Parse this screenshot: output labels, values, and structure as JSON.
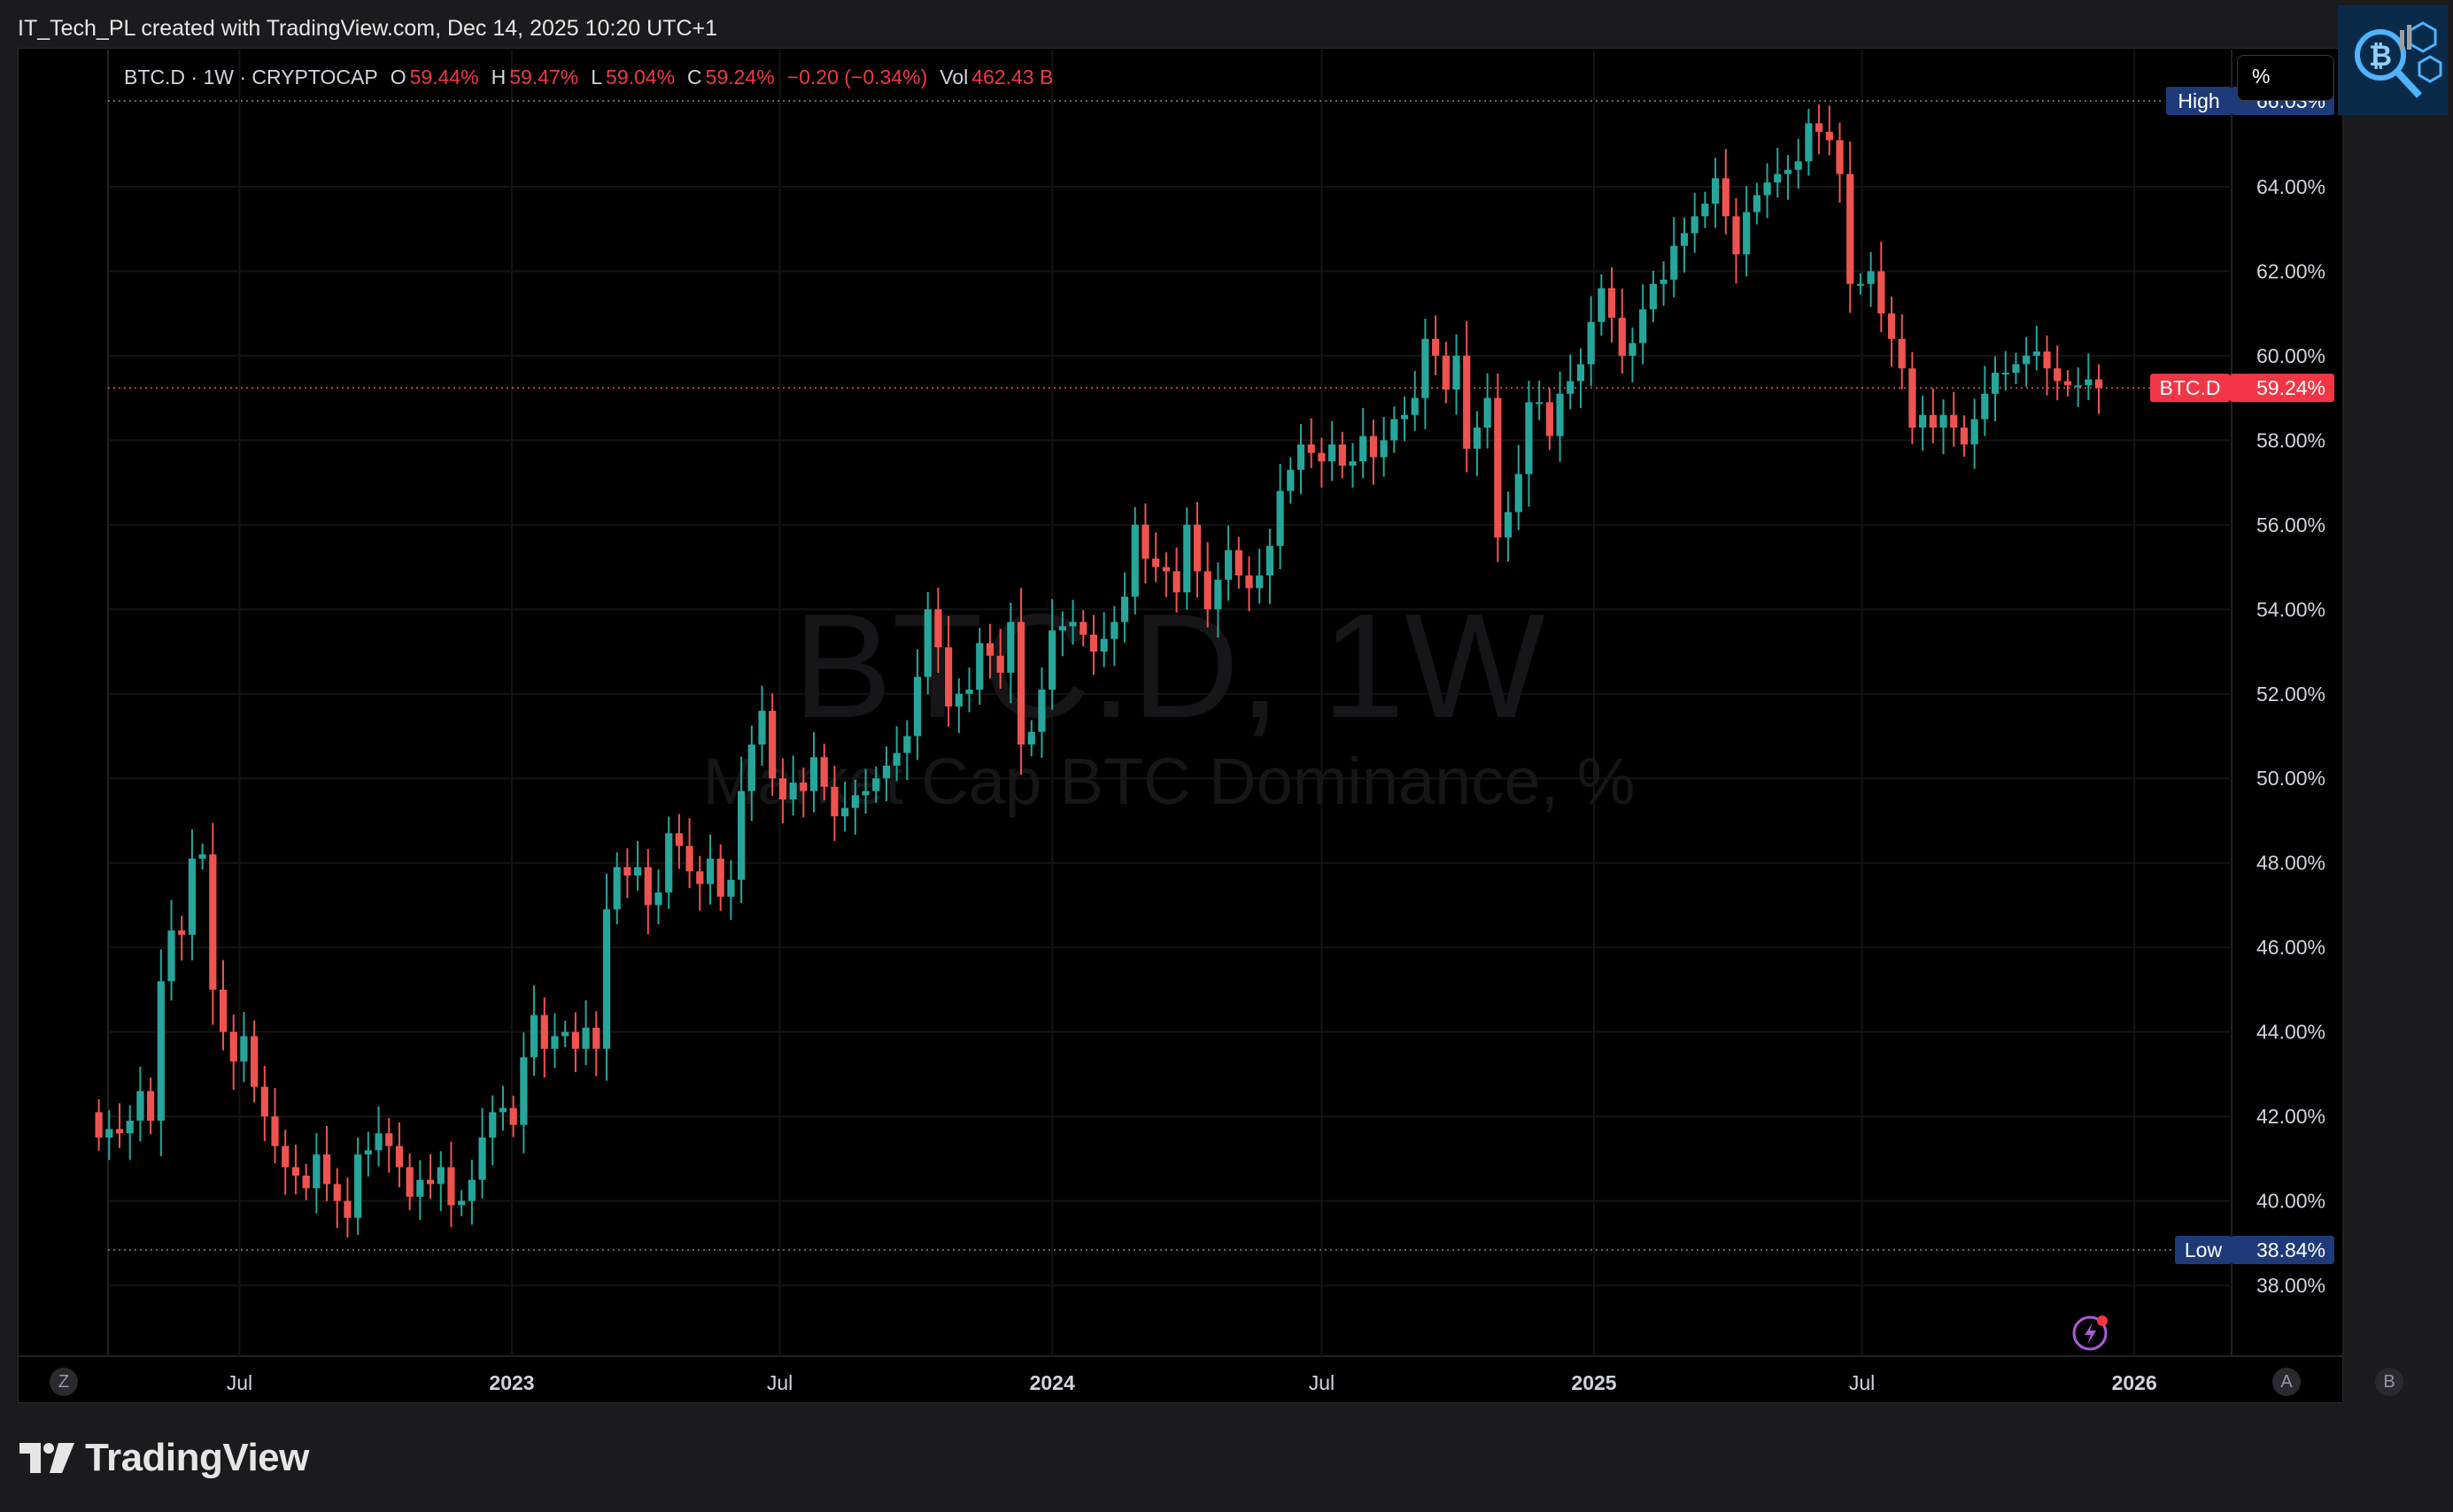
{
  "attribution": "IT_Tech_PL created with TradingView.com, Dec 14, 2025 10:20 UTC+1",
  "legend": {
    "symbol": "BTC.D · 1W · CRYPTOCAP",
    "open_label": "O",
    "open": "59.44%",
    "high_label": "H",
    "high": "59.47%",
    "low_label": "L",
    "low": "59.04%",
    "close_label": "C",
    "close": "59.24%",
    "change": "−0.20 (−0.34%)",
    "vol_label": "Vol",
    "vol": "462.43 B"
  },
  "unit_button": "%",
  "brand": "TradingView",
  "axis_buttons": {
    "z": "Z",
    "a": "A",
    "b": "B"
  },
  "colors": {
    "up": "#26a69a",
    "down": "#ef5350",
    "badge_blue": "#1e3a78",
    "badge_red": "#f23645"
  },
  "icons": [
    "tradingview-logo-icon",
    "lightning-icon",
    "btc-magnifier-logo-icon"
  ],
  "chart_data": {
    "type": "candlestick",
    "watermark_title": "BTC.D, 1W",
    "watermark_subtitle": "Market Cap BTC Dominance, %",
    "y_ticks": [
      "38.00%",
      "40.00%",
      "42.00%",
      "44.00%",
      "46.00%",
      "48.00%",
      "50.00%",
      "52.00%",
      "54.00%",
      "56.00%",
      "58.00%",
      "60.00%",
      "62.00%",
      "64.00%"
    ],
    "y_tick_values": [
      38,
      40,
      42,
      44,
      46,
      48,
      50,
      52,
      54,
      56,
      58,
      60,
      62,
      64
    ],
    "ylim": [
      35.8,
      68.2
    ],
    "x_ticks": [
      {
        "label": "Jul",
        "date": "2022-07-01",
        "bold": false
      },
      {
        "label": "2023",
        "date": "2023-01-01",
        "bold": true
      },
      {
        "label": "Jul",
        "date": "2023-07-01",
        "bold": false
      },
      {
        "label": "2024",
        "date": "2024-01-01",
        "bold": true
      },
      {
        "label": "Jul",
        "date": "2024-07-01",
        "bold": false
      },
      {
        "label": "2025",
        "date": "2025-01-01",
        "bold": true
      },
      {
        "label": "Jul",
        "date": "2025-07-01",
        "bold": false
      },
      {
        "label": "2026",
        "date": "2026-01-01",
        "bold": true
      }
    ],
    "first_week": "2022-03-28",
    "high_marker": {
      "label": "High",
      "value": "66.03%",
      "y": 66.03
    },
    "low_marker": {
      "label": "Low",
      "value": "38.84%",
      "y": 38.84
    },
    "last_marker": {
      "label": "BTC.D",
      "value": "59.24%",
      "y": 59.24
    },
    "closes": [
      41.5,
      41.7,
      41.6,
      41.9,
      42.6,
      41.9,
      45.2,
      46.4,
      46.3,
      48.1,
      48.2,
      45.0,
      44.0,
      43.3,
      43.9,
      42.7,
      42.0,
      41.3,
      40.8,
      40.6,
      40.3,
      41.1,
      40.4,
      40.0,
      39.6,
      41.1,
      41.2,
      41.6,
      41.3,
      40.8,
      40.1,
      40.5,
      40.4,
      40.8,
      39.9,
      40.0,
      40.5,
      41.5,
      42.1,
      42.2,
      41.8,
      43.4,
      44.4,
      43.6,
      43.9,
      44.0,
      43.6,
      44.1,
      43.6,
      46.9,
      47.9,
      47.7,
      47.9,
      47.0,
      47.3,
      48.7,
      48.4,
      47.8,
      47.5,
      48.1,
      47.2,
      47.6,
      49.7,
      50.8,
      51.6,
      50.0,
      49.5,
      49.9,
      49.7,
      50.5,
      49.8,
      49.1,
      49.3,
      49.6,
      49.7,
      50.0,
      50.3,
      50.6,
      51.0,
      52.4,
      54.0,
      53.1,
      51.7,
      52.0,
      52.1,
      53.2,
      52.9,
      52.5,
      53.7,
      50.8,
      51.1,
      52.1,
      53.5,
      53.6,
      53.7,
      53.4,
      53.0,
      53.3,
      53.7,
      54.3,
      56.0,
      55.2,
      55.0,
      54.9,
      54.4,
      56.0,
      54.9,
      54.0,
      54.7,
      55.4,
      54.8,
      54.5,
      54.8,
      55.5,
      56.8,
      57.3,
      57.9,
      57.7,
      57.5,
      57.9,
      57.4,
      57.5,
      58.1,
      57.6,
      58.0,
      58.5,
      58.6,
      59.0,
      60.4,
      60.0,
      59.2,
      60.0,
      57.8,
      58.3,
      59.0,
      55.7,
      56.3,
      57.2,
      58.9,
      58.9,
      58.1,
      59.1,
      59.4,
      59.8,
      60.8,
      61.6,
      60.9,
      60.0,
      60.3,
      61.1,
      61.7,
      61.8,
      62.6,
      62.9,
      63.3,
      63.6,
      64.2,
      63.3,
      62.4,
      63.4,
      63.8,
      64.1,
      64.3,
      64.4,
      64.6,
      65.5,
      65.3,
      65.1,
      64.3,
      61.7,
      61.7,
      62.0,
      61.0,
      60.4,
      59.7,
      58.3,
      58.6,
      58.3,
      58.6,
      58.3,
      57.9,
      58.5,
      59.1,
      59.6,
      59.6,
      59.8,
      60.0,
      60.1,
      59.7,
      59.4,
      59.3,
      59.3,
      59.44,
      59.24
    ],
    "series": [
      {
        "values_ref": "closes"
      }
    ]
  }
}
